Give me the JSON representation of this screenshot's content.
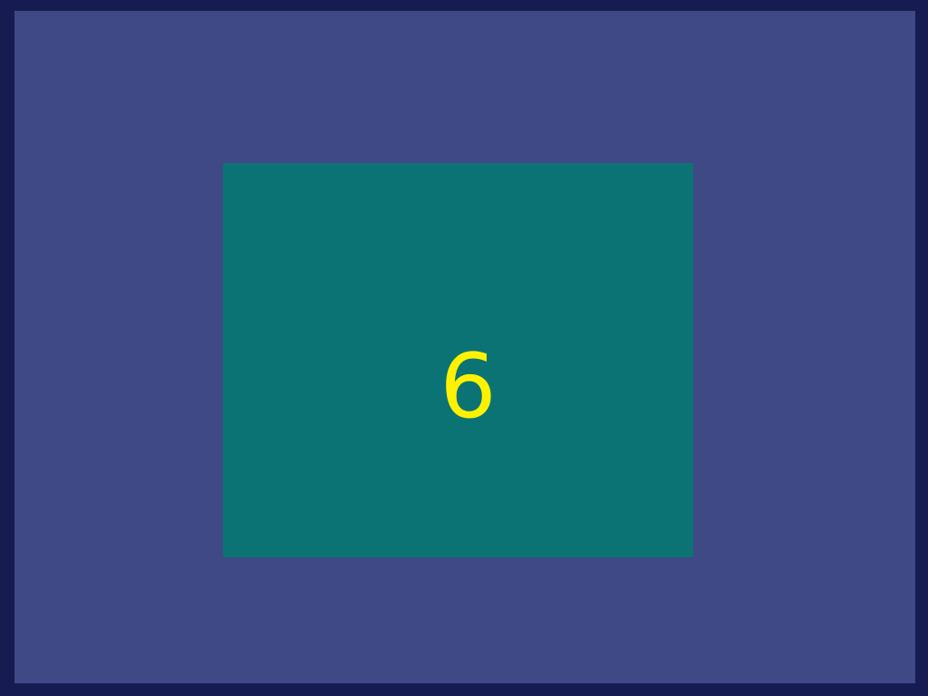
{
  "panel": {
    "value": "6"
  },
  "colors": {
    "outer_border": "#161c52",
    "outer_background": "#3f4985",
    "panel_background": "#0c7375",
    "value_text": "#fff200"
  }
}
